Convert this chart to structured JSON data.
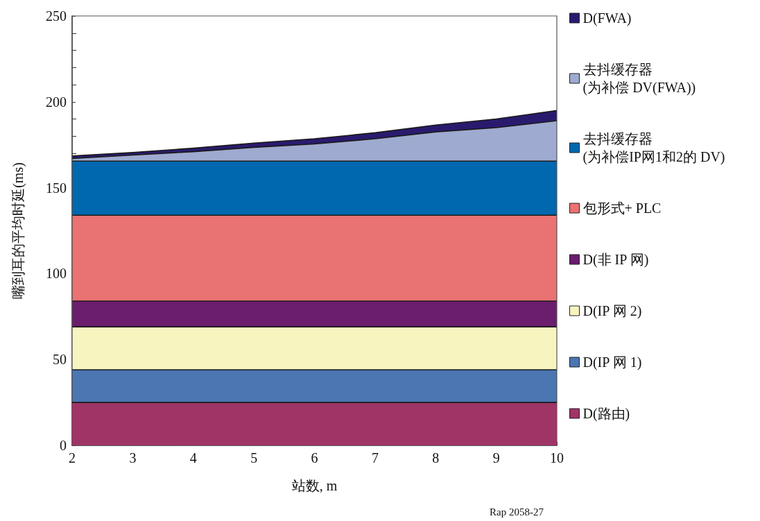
{
  "chart_data": {
    "type": "area",
    "stacked": true,
    "xlabel": "站数, m",
    "ylabel": "嘴到耳的平均时延(ms)",
    "x": [
      2,
      3,
      4,
      5,
      6,
      7,
      8,
      9,
      10
    ],
    "xlim": [
      2,
      10
    ],
    "xticks": [
      2,
      3,
      4,
      5,
      6,
      7,
      8,
      9,
      10
    ],
    "ylim": [
      0,
      250
    ],
    "yticks": [
      0,
      50,
      100,
      150,
      200,
      250
    ],
    "grid": false,
    "legend": "right",
    "marker": "none",
    "series": [
      {
        "name": "D(路由)",
        "color": "#9e3566",
        "values": [
          25,
          25,
          25,
          25,
          25,
          25,
          25,
          25,
          25
        ]
      },
      {
        "name": "D(IP 网 1)",
        "color": "#4b76b1",
        "values": [
          19,
          19,
          19,
          19,
          19,
          19,
          19,
          19,
          19
        ]
      },
      {
        "name": "D(IP 网 2)",
        "color": "#f7f4c0",
        "values": [
          25,
          25,
          25,
          25,
          25,
          25,
          25,
          25,
          25
        ]
      },
      {
        "name": "D(非 IP 网)",
        "color": "#6b1d6e",
        "values": [
          15,
          15,
          15,
          15,
          15,
          15,
          15,
          15,
          15
        ]
      },
      {
        "name": "包形式+ PLC",
        "color": "#e87372",
        "values": [
          50,
          50,
          50,
          50,
          50,
          50,
          50,
          50,
          50
        ]
      },
      {
        "name": "去抖缓存器\n(为补偿IP网1和2的 DV)",
        "color": "#0068ae",
        "values": [
          31.5,
          31.5,
          31.5,
          31.5,
          31.5,
          31.5,
          31.5,
          31.5,
          31.5
        ]
      },
      {
        "name": "去抖缓存器\n(为补偿 DV(FWA))",
        "color": "#9eaacf",
        "values": [
          1.5,
          3.5,
          5.5,
          8,
          10,
          13,
          17,
          19.5,
          23.5
        ]
      },
      {
        "name": "D(FWA)",
        "color": "#2a1a6e",
        "values": [
          1.5,
          1.5,
          2,
          2.5,
          3,
          3.5,
          4,
          5,
          6
        ]
      }
    ],
    "annotations": [
      "Rap 2058-27"
    ]
  }
}
